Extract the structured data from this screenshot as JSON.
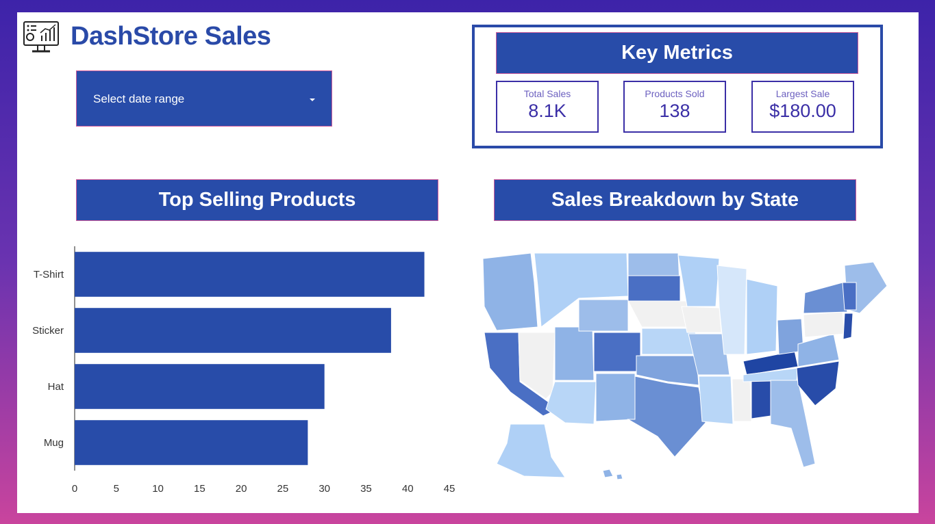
{
  "header": {
    "title": "DashStore Sales",
    "logo_icon": "dashboard-monitor-icon"
  },
  "filters": {
    "date_range_label": "Select date range"
  },
  "key_metrics": {
    "title": "Key Metrics",
    "items": [
      {
        "label": "Total Sales",
        "value": "8.1K"
      },
      {
        "label": "Products Sold",
        "value": "138"
      },
      {
        "label": "Largest Sale",
        "value": "$180.00"
      }
    ]
  },
  "top_products": {
    "title": "Top Selling Products"
  },
  "state_map": {
    "title": "Sales Breakdown by State"
  },
  "colors": {
    "primary": "#284ca9",
    "accent_border": "#d05b9a",
    "metric_text": "#3a2ea6"
  },
  "chart_data": {
    "type": "bar",
    "orientation": "horizontal",
    "title": "Top Selling Products",
    "categories": [
      "T-Shirt",
      "Sticker",
      "Hat",
      "Mug"
    ],
    "values": [
      42,
      38,
      30,
      28
    ],
    "xlim": [
      0,
      45
    ],
    "xticks": [
      0,
      5,
      10,
      15,
      20,
      25,
      30,
      35,
      40,
      45
    ],
    "xlabel": "",
    "ylabel": "",
    "grid": false
  }
}
